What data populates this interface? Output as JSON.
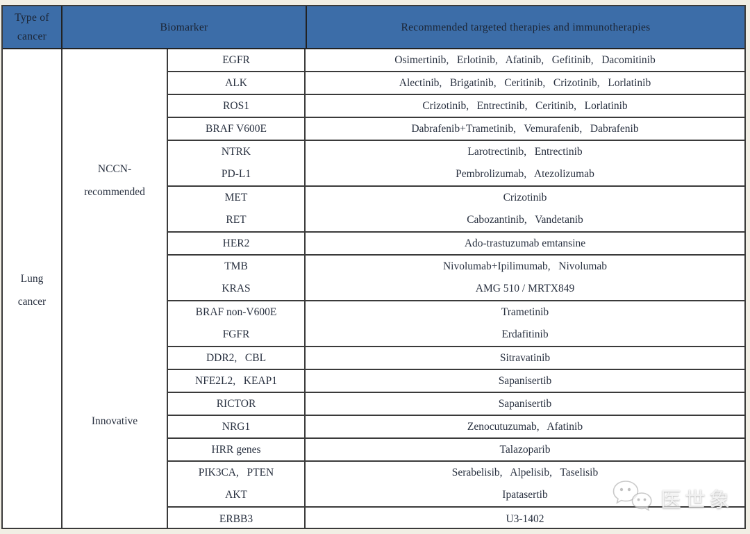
{
  "header": {
    "type_line1": "Type of",
    "type_line2": "cancer",
    "biomarker": "Biomarker",
    "therapies": "Recommended targeted therapies and immunotherapies"
  },
  "cancer": {
    "line1": "Lung",
    "line2": "cancer"
  },
  "groups": [
    {
      "label_lines": [
        "NCCN-",
        "recommended"
      ],
      "rows": [
        {
          "biomarkers": [
            "EGFR"
          ],
          "therapies": [
            "Osimertinib， Erlotinib， Afatinib， Gefitinib， Dacomitinib"
          ]
        },
        {
          "biomarkers": [
            "ALK"
          ],
          "therapies": [
            "Alectinib， Brigatinib， Ceritinib， Crizotinib， Lorlatinib"
          ]
        },
        {
          "biomarkers": [
            "ROS1"
          ],
          "therapies": [
            "Crizotinib， Entrectinib， Ceritinib， Lorlatinib"
          ]
        },
        {
          "biomarkers": [
            "BRAF V600E"
          ],
          "therapies": [
            "Dabrafenib+Trametinib， Vemurafenib， Dabrafenib"
          ]
        },
        {
          "biomarkers": [
            "NTRK",
            "PD-L1"
          ],
          "therapies": [
            "Larotrectinib， Entrectinib",
            "Pembrolizumab， Atezolizumab"
          ]
        },
        {
          "biomarkers": [
            "MET",
            "RET"
          ],
          "therapies": [
            "Crizotinib",
            "Cabozantinib， Vandetanib"
          ]
        },
        {
          "biomarkers": [
            "HER2"
          ],
          "therapies": [
            "Ado-trastuzumab emtansine"
          ]
        },
        {
          "biomarkers": [
            "TMB",
            "KRAS"
          ],
          "therapies": [
            "Nivolumab+Ipilimumab， Nivolumab",
            "AMG 510 / MRTX849"
          ]
        }
      ]
    },
    {
      "label_lines": [
        "Innovative"
      ],
      "rows": [
        {
          "biomarkers": [
            "BRAF non-V600E",
            "FGFR"
          ],
          "therapies": [
            "Trametinib",
            "Erdafitinib"
          ]
        },
        {
          "biomarkers": [
            "DDR2， CBL"
          ],
          "therapies": [
            "Sitravatinib"
          ]
        },
        {
          "biomarkers": [
            "NFE2L2， KEAP1"
          ],
          "therapies": [
            "Sapanisertib"
          ]
        },
        {
          "biomarkers": [
            "RICTOR"
          ],
          "therapies": [
            "Sapanisertib"
          ]
        },
        {
          "biomarkers": [
            "NRG1"
          ],
          "therapies": [
            "Zenocutuzumab， Afatinib"
          ]
        },
        {
          "biomarkers": [
            "HRR genes"
          ],
          "therapies": [
            "Talazoparib"
          ]
        },
        {
          "biomarkers": [
            "PIK3CA， PTEN",
            "AKT"
          ],
          "therapies": [
            "Serabelisib， Alpelisib， Taselisib",
            "Ipatasertib"
          ]
        },
        {
          "biomarkers": [
            "ERBB3"
          ],
          "therapies": [
            "U3-1402"
          ]
        }
      ]
    }
  ],
  "watermark": {
    "icon": "wechat-chat-bubbles-icon",
    "text": "医世象"
  },
  "colors": {
    "header_bg": "#3c6da8",
    "header_text": "#1b2433",
    "body_text": "#293140",
    "border": "#3a3a3a",
    "page_bg": "#f1eee4"
  }
}
